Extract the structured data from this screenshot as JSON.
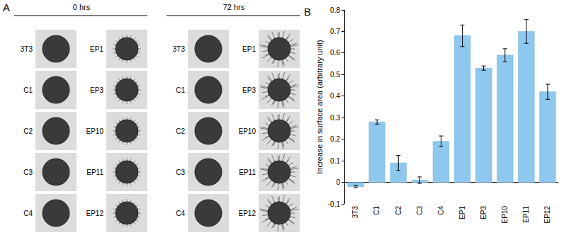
{
  "panel_a": {
    "label": "A",
    "time_points": [
      "0 hrs",
      "72 hrs"
    ],
    "rows": [
      [
        "3T3",
        "EP1"
      ],
      [
        "C1",
        "EP3"
      ],
      [
        "C2",
        "EP10"
      ],
      [
        "C3",
        "EP11"
      ],
      [
        "C4",
        "EP12"
      ]
    ]
  },
  "chart_data": {
    "panel_label": "B",
    "type": "bar",
    "categories": [
      "3T3",
      "C1",
      "C2",
      "C3",
      "C4",
      "EP1",
      "EP3",
      "EP10",
      "EP11",
      "EP12"
    ],
    "values": [
      -0.02,
      0.28,
      0.09,
      0.01,
      0.19,
      0.68,
      0.53,
      0.59,
      0.7,
      0.42
    ],
    "errors": [
      0.005,
      0.01,
      0.035,
      0.015,
      0.025,
      0.05,
      0.01,
      0.03,
      0.055,
      0.035
    ],
    "ylabel": "Increase in surface area (arbitrary unit)",
    "color": "#8fc8ef",
    "ylim": [
      -0.1,
      0.8
    ],
    "yticks": [
      -0.1,
      0,
      0.1,
      0.2,
      0.3,
      0.4,
      0.5,
      0.6,
      0.7,
      0.8
    ],
    "grid": false
  }
}
